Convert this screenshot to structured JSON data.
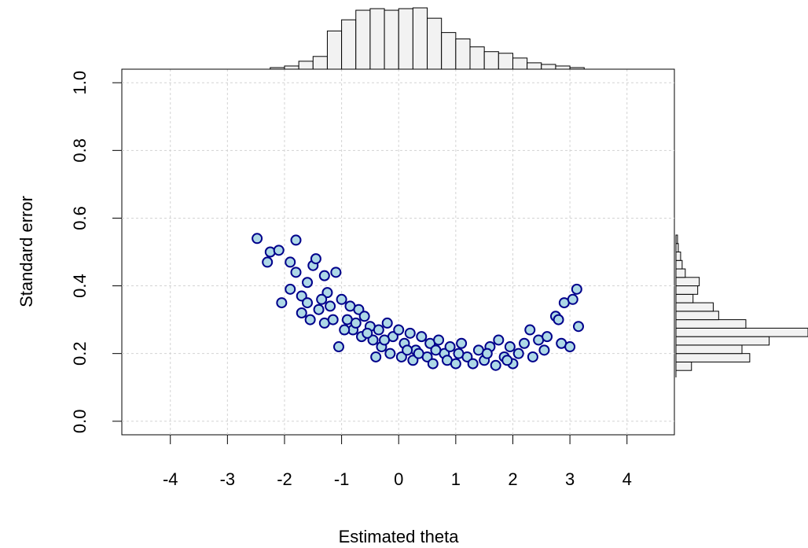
{
  "chart_data": {
    "type": "scatter",
    "x_label": "Estimated theta",
    "y_label": "Standard error",
    "xlim": [
      -4.85,
      4.83
    ],
    "ylim": [
      -0.04,
      1.04
    ],
    "xticks": [
      -4,
      -3,
      -2,
      -1,
      0,
      1,
      2,
      3,
      4
    ],
    "yticks": [
      {
        "value": 0,
        "label": "0.0"
      },
      0.2,
      0.4,
      0.6,
      0.8,
      {
        "value": 1,
        "label": "1.0"
      }
    ],
    "grid": true,
    "point_fill": "#add8e6",
    "point_stroke": "#00008b",
    "x": [
      -2.48,
      -2.3,
      -2.25,
      -2.1,
      -1.8,
      -2.05,
      -1.9,
      -1.9,
      -1.8,
      -1.7,
      -1.6,
      -1.5,
      -1.45,
      -1.4,
      -1.3,
      -1.25,
      -1.2,
      -1.1,
      -1.0,
      -1.05,
      -0.9,
      -0.85,
      -0.8,
      -0.7,
      -0.65,
      -0.6,
      -0.5,
      -0.45,
      -0.4,
      -0.35,
      -0.3,
      -0.2,
      -0.15,
      -0.1,
      0,
      0.05,
      0.1,
      0.2,
      0.25,
      0.3,
      0.4,
      0.5,
      0.55,
      0.6,
      0.7,
      0.8,
      0.85,
      0.9,
      1.0,
      1.1,
      1.2,
      1.3,
      1.4,
      1.5,
      1.6,
      1.7,
      1.75,
      1.85,
      1.95,
      2.0,
      2.1,
      2.2,
      2.3,
      2.35,
      2.45,
      2.55,
      2.6,
      2.75,
      2.8,
      2.85,
      2.9,
      3.0,
      3.05,
      3.12,
      3.15,
      -1.7,
      -1.55,
      -1.3,
      -0.95,
      -1.6,
      -1.35,
      -1.15,
      -0.75,
      -0.55,
      -0.25,
      0.15,
      0.35,
      0.65,
      1.05,
      1.55,
      1.9
    ],
    "values": [
      0.54,
      0.47,
      0.5,
      0.505,
      0.535,
      0.35,
      0.47,
      0.39,
      0.44,
      0.37,
      0.41,
      0.46,
      0.48,
      0.33,
      0.43,
      0.38,
      0.34,
      0.44,
      0.36,
      0.22,
      0.3,
      0.34,
      0.27,
      0.33,
      0.25,
      0.31,
      0.28,
      0.24,
      0.19,
      0.27,
      0.22,
      0.29,
      0.2,
      0.25,
      0.27,
      0.19,
      0.23,
      0.26,
      0.18,
      0.21,
      0.25,
      0.19,
      0.23,
      0.17,
      0.24,
      0.2,
      0.18,
      0.22,
      0.17,
      0.23,
      0.19,
      0.17,
      0.21,
      0.18,
      0.22,
      0.165,
      0.24,
      0.19,
      0.22,
      0.17,
      0.2,
      0.23,
      0.27,
      0.19,
      0.24,
      0.21,
      0.25,
      0.31,
      0.3,
      0.23,
      0.35,
      0.22,
      0.36,
      0.39,
      0.28,
      0.32,
      0.3,
      0.29,
      0.27,
      0.35,
      0.36,
      0.3,
      0.29,
      0.26,
      0.24,
      0.21,
      0.2,
      0.21,
      0.2,
      0.2,
      0.18
    ],
    "hist_fill": "#f2f2f2",
    "top_histogram": {
      "bins": [
        -2.25,
        -2,
        -1.75,
        -1.5,
        -1.25,
        -1,
        -0.75,
        -0.5,
        -0.25,
        0,
        0.25,
        0.5,
        0.75,
        1,
        1.25,
        1.5,
        1.75,
        2,
        2.25,
        2.5,
        2.75,
        3,
        3.25
      ],
      "counts": [
        2,
        4,
        10,
        16,
        48,
        62,
        74,
        76,
        74,
        76,
        77,
        64,
        46,
        38,
        28,
        22,
        20,
        14,
        8,
        6,
        4,
        2
      ]
    },
    "right_histogram": {
      "bins": [
        0.15,
        0.175,
        0.2,
        0.225,
        0.25,
        0.275,
        0.3,
        0.325,
        0.35,
        0.375,
        0.4,
        0.425,
        0.45,
        0.475,
        0.5,
        0.525,
        0.55
      ],
      "counts": [
        20,
        95,
        85,
        120,
        170,
        90,
        55,
        48,
        22,
        28,
        30,
        12,
        8,
        6,
        3,
        2
      ]
    }
  }
}
